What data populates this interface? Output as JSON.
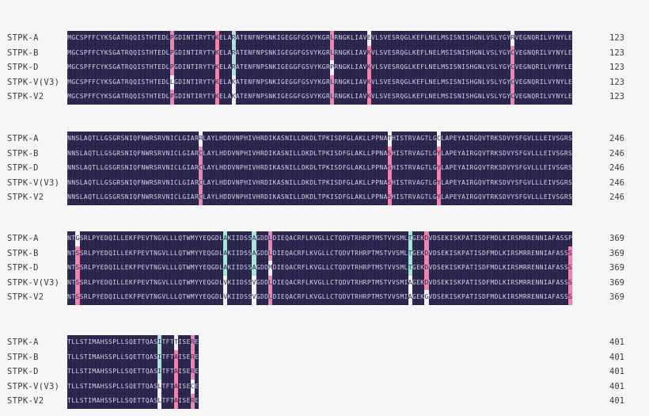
{
  "colors": {
    "page_background": "#f6f6f6",
    "seq_bg": "#2d2850",
    "seq_text": "#d4d0e4",
    "pink": "#ef86b2",
    "cyan": "#abe6dc",
    "white_cell": "#f4f2f6",
    "label_text": "#3b3b3b"
  },
  "sequence_labels": [
    "STPK-A",
    "STPK-B",
    "STPK-D",
    "STPK-V(V3)",
    "STPK-V2"
  ],
  "alignment": {
    "blocks": [
      {
        "end_position": "123",
        "rows": [
          {
            "label": "STPK-A",
            "seq": "MGCSPFFCYKSGATRQQISTHTEDLPGDINTIRYTYKELARATENFNPSNKIGEGGFGSVYKGRLRNGKLIAVEVLSVESRQGLKEFLNELMSISNISHGNLVSLYGYRVEGNQRILVYNYLE",
            "num": "123"
          },
          {
            "label": "STPK-B",
            "seq": "MGCSPFFCYKSGATRQQISTHTEDLPGDINTIRYTYKELARATENFNPSNKIGEGGFGSVYKGRLRNGKLIAVKVLSVESRQGLKEFLNELMSISNISHGNLVSLYGYCVEGNQRILVYNYLE",
            "num": "123"
          },
          {
            "label": "STPK-D",
            "seq": "MGCSPFFCYKSGATRQQISTHTEDLPGDINTIRYTYKELARATENFNPSNKIGEGGFGSVYKGRPRNGKLIAVKVLSVESRQGLKEFLNELMSISNISHGNLVSLYGYCVEGNQRILVYNYLE",
            "num": "123"
          },
          {
            "label": "STPK-V(V3)",
            "seq": "MGCSPFFCYKSGATRQQISTHTEDLLGDINTIRYTYKELAKATENFNPSNKIGEGGFGSVYKGRLRNGKLIAVKVLSVESRQGLKEFLNELMSISNISHGNLVSLYGYCVEGNQRILVYNYLE",
            "num": "123"
          },
          {
            "label": "STPK-V2",
            "seq": "MGCSPFFCYKSGATRQQISTHTEDLPGDINTIRYTYKELAKATENFNPSNKIGEGGFGSVYKGRLRNGKLIAVKVLSVESRQGLKEFLNELMSISNISHGNLVSLYGYCVEGNQRILVYNYLE",
            "num": "123"
          }
        ],
        "highlights": [
          {
            "col": 25,
            "cells": [
              "pink",
              "pink",
              "pink",
              "white",
              "pink"
            ]
          },
          {
            "col": 36,
            "cells": [
              "pink",
              "pink",
              "pink",
              "pink",
              "pink"
            ]
          },
          {
            "col": 40,
            "cells": [
              "cyan",
              "cyan",
              "cyan",
              "white",
              "white"
            ]
          },
          {
            "col": 64,
            "cells": [
              "pink",
              "pink",
              "white",
              "pink",
              "pink"
            ]
          },
          {
            "col": 73,
            "cells": [
              "white",
              "pink",
              "pink",
              "pink",
              "pink"
            ]
          },
          {
            "col": 108,
            "cells": [
              "white",
              "pink",
              "pink",
              "pink",
              "pink"
            ]
          }
        ]
      },
      {
        "end_position": "246",
        "rows": [
          {
            "label": "STPK-A",
            "seq": "NNSLAQTLLGSGRSNIQFNWRSRVNICLGIARRLAYLHDDVNPHIVHRDIKASNILLDKDLTPKISDFGLAKLLPPNATHISTRVAGTLGCLAPEYAIRGQVTRKSDVYSFGVLLLEIVSGRS",
            "num": "246"
          },
          {
            "label": "STPK-B",
            "seq": "NNSLAQTLLGSGRSNIQFNWRSRVNICLGIARCLAYLHDDVNPHIVHRDIKASNILLDKDLTPKISDFGLAKLLPPNASHISTRVAGTLGYLAPEYAIRGQVTRKSDVYSFGVLLLEIVSGRS",
            "num": "246"
          },
          {
            "label": "STPK-D",
            "seq": "NNSLAQTLLGSGRSNIQFNWRSRVNICLGIARCLAYLHDDVNPHIVHRDIKASNILLDKDLTPKISDFGLAKLLPPNASHISTRVAGTLGYLAPEYAIRGQVTRKSDVYSFGVLLLEIVSGRS",
            "num": "246"
          },
          {
            "label": "STPK-V(V3)",
            "seq": "NNSLAQTLLGSGRSNIQFNWRSRVNICLGIARCLAYLHDDVNPHIVHRDIKASNILLDKDLTPKISDFGLAKLLPPNASHISTRVAGTLGYLAPEYAIRGQVTRKSDVYSFGVLLLEIVSGRS",
            "num": "246"
          },
          {
            "label": "STPK-V2",
            "seq": "NNSLAQTLLGSGRSNIQFNWRSRVNICLGIARCLAYLHDDVNPHIVHRDIKASNILLDKDLTPKISDFGLAKLLPPNASHISTRVAGTLGYLAPEYAIRGQVTRKSDVYSFGVLLLEIVSGRS",
            "num": "246"
          }
        ],
        "highlights": [
          {
            "col": 32,
            "cells": [
              "white",
              "pink",
              "pink",
              "pink",
              "pink"
            ]
          },
          {
            "col": 78,
            "cells": [
              "white",
              "pink",
              "pink",
              "pink",
              "pink"
            ]
          },
          {
            "col": 90,
            "cells": [
              "white",
              "pink",
              "pink",
              "pink",
              "pink"
            ]
          }
        ]
      },
      {
        "end_position": "369",
        "rows": [
          {
            "label": "STPK-A",
            "seq": "NTGSRLPYEDQILLEKFPEVTNGVLLLQTWMYYEQGDLAKIIDSSAGDDLDIEQACRFLKVGLLCTQDVTRHRPTMSTVVSMLTGEKDVDSEKISKPATISDFMDLKIRSMRRENNIAFASSP",
            "num": "369"
          },
          {
            "label": "STPK-B",
            "seq": "NTSSRLPYEDQILLEKFPEVTNGVLLLQTWMYYEQGDLAKIIDSSAGDDLDIEQACRFLKVGLLCTQDVTRHRPTMSTVVSMLTGEKDVDSEKISKPATISDFMDLKIRSMRRENNIAFASSS",
            "num": "369"
          },
          {
            "label": "STPK-D",
            "seq": "NTSSRLPYEDQILLEKFPEVTNGVLLLQTWMYYEQGDLAKIIDSSAGDDMDIEQACRFLKVGLLCTQDVTRHRPTMSTVVSMLTGEKDVDSEKISKPATISDFMDLKIRSMRRENNIAFASSS",
            "num": "369"
          },
          {
            "label": "STPK-V(V3)",
            "seq": "NTSSRLPYEDQILLEKFPEVTNGVLLLQTWMYYEQGDLVKIIDSSVGDDLDIEQACRFLKVGLLCTQDVTRHRPTMSTVVSMIAGEKDVDSEKISKPATISDFMDLKIRSMRRENNIAFASSS",
            "num": "369"
          },
          {
            "label": "STPK-V2",
            "seq": "NTSSRLPYEDQILLEKFPEVTNGVLLLQTWMYYEQGDLVKIIDSSVGDDLDIEQACRFLKVGLLCTQDVTRHRPTMSTVVSMIAGEKGVDSEKISKPATISDFMDLKIRSMRRENNIAFASSS",
            "num": "369"
          }
        ],
        "highlights": [
          {
            "col": 2,
            "cells": [
              "white",
              "pink",
              "pink",
              "pink",
              "pink"
            ]
          },
          {
            "col": 38,
            "cells": [
              "cyan",
              "cyan",
              "cyan",
              "white",
              "white"
            ]
          },
          {
            "col": 45,
            "cells": [
              "cyan",
              "cyan",
              "cyan",
              "white",
              "white"
            ]
          },
          {
            "col": 49,
            "cells": [
              "pink",
              "pink",
              "white",
              "pink",
              "pink"
            ]
          },
          {
            "col": 83,
            "cells": [
              "cyan",
              "cyan",
              "cyan",
              "white",
              "white"
            ]
          },
          {
            "col": 87,
            "cells": [
              "pink",
              "pink",
              "pink",
              "pink",
              "white"
            ]
          },
          {
            "col": 122,
            "cells": [
              "none",
              "pink",
              "pink",
              "pink",
              "pink"
            ]
          }
        ]
      },
      {
        "end_position": "401",
        "rows": [
          {
            "label": "STPK-A",
            "seq": "TLLSTIMAHSSPLLSQETTQASITFTTISERE",
            "num": "401"
          },
          {
            "label": "STPK-B",
            "seq": "TLLSTIMAHSSPLLSQETTQASITFTAISERE",
            "num": "401"
          },
          {
            "label": "STPK-D",
            "seq": "TLLSTIMAHSSPLLSQETTQASITFTAISERE",
            "num": "401"
          },
          {
            "label": "STPK-V(V3)",
            "seq": "TLLSTIMAHSSPLLSQETTQASLTFTAISECE",
            "num": "401"
          },
          {
            "label": "STPK-V2",
            "seq": "TLLSTIMAHSSPLLSQETTQASLTFTAISERE",
            "num": "401"
          }
        ],
        "highlights": [
          {
            "col": 22,
            "cells": [
              "cyan",
              "cyan",
              "cyan",
              "white",
              "white"
            ]
          },
          {
            "col": 26,
            "cells": [
              "white",
              "pink",
              "pink",
              "pink",
              "pink"
            ]
          },
          {
            "col": 30,
            "cells": [
              "pink",
              "pink",
              "pink",
              "white",
              "pink"
            ]
          }
        ]
      }
    ]
  }
}
